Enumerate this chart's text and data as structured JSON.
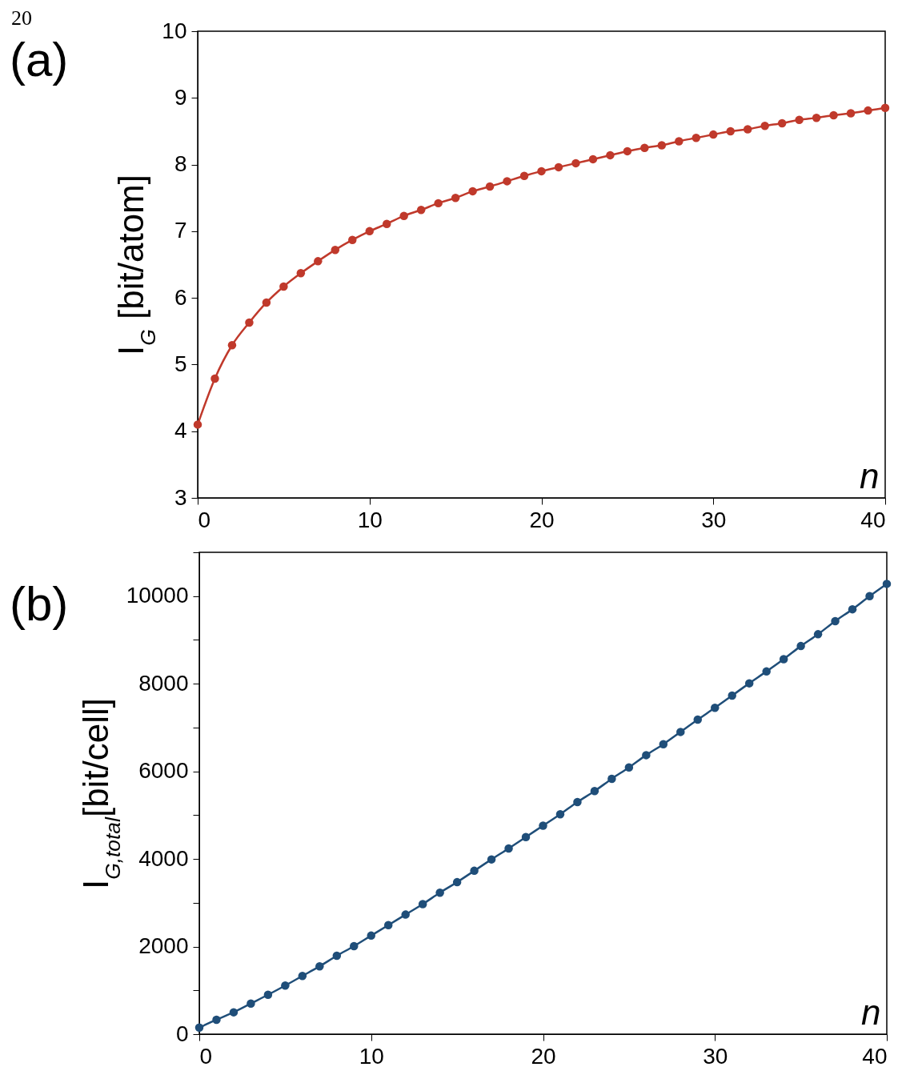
{
  "chart_data": [
    {
      "type": "line",
      "title": "(a)",
      "xlabel": "n",
      "ylabel": "I$_{G}$ [bit/atom]",
      "annotations": [
        "20"
      ],
      "marker": "circle",
      "line_style": "solid",
      "x": [
        0,
        1,
        2,
        3,
        4,
        5,
        6,
        7,
        8,
        9,
        10,
        11,
        12,
        13,
        14,
        15,
        16,
        17,
        18,
        19,
        20,
        21,
        22,
        23,
        24,
        25,
        26,
        27,
        28,
        29,
        30,
        31,
        32,
        33,
        34,
        35,
        36,
        37,
        38,
        39,
        40
      ],
      "series": [
        {
          "color": "#c0392b",
          "values": [
            4.1,
            4.79,
            5.29,
            5.63,
            5.93,
            6.17,
            6.37,
            6.55,
            6.72,
            6.87,
            7.0,
            7.11,
            7.23,
            7.32,
            7.42,
            7.5,
            7.6,
            7.67,
            7.75,
            7.83,
            7.9,
            7.96,
            8.02,
            8.08,
            8.14,
            8.2,
            8.25,
            8.29,
            8.35,
            8.4,
            8.45,
            8.5,
            8.53,
            8.58,
            8.62,
            8.67,
            8.7,
            8.74,
            8.77,
            8.81,
            8.85
          ]
        }
      ],
      "xlim": [
        0,
        40
      ],
      "xticks": [
        0,
        10,
        20,
        30,
        40
      ],
      "ylim": [
        3,
        10
      ],
      "yticks": [
        3,
        4,
        5,
        6,
        7,
        8,
        9,
        10
      ]
    },
    {
      "type": "line",
      "title": "(b)",
      "xlabel": "n",
      "ylabel": "I$_{G,total}$[bit/cell]",
      "marker": "circle",
      "line_style": "solid",
      "x": [
        0,
        1,
        2,
        3,
        4,
        5,
        6,
        7,
        8,
        9,
        10,
        11,
        12,
        13,
        14,
        15,
        16,
        17,
        18,
        19,
        20,
        21,
        22,
        23,
        24,
        25,
        26,
        27,
        28,
        29,
        30,
        31,
        32,
        33,
        34,
        35,
        36,
        37,
        38,
        39,
        40
      ],
      "series": [
        {
          "color": "#1f4e79",
          "values": [
            150,
            330,
            500,
            700,
            900,
            1110,
            1330,
            1550,
            1790,
            2010,
            2250,
            2490,
            2730,
            2970,
            3230,
            3470,
            3730,
            3990,
            4240,
            4500,
            4760,
            5020,
            5300,
            5550,
            5830,
            6090,
            6370,
            6620,
            6900,
            7180,
            7450,
            7730,
            8010,
            8280,
            8560,
            8860,
            9130,
            9430,
            9700,
            10000,
            10280
          ]
        }
      ],
      "xlim": [
        0,
        40
      ],
      "xticks": [
        0,
        10,
        20,
        30,
        40
      ],
      "ylim": [
        0,
        11000
      ],
      "yticks": [
        0,
        {
          "value": 1000,
          "label": null
        },
        2000,
        {
          "value": 3000,
          "label": null
        },
        4000,
        {
          "value": 5000,
          "label": null
        },
        6000,
        {
          "value": 7000,
          "label": null
        },
        8000,
        {
          "value": 9000,
          "label": null
        },
        10000,
        {
          "value": 11000,
          "label": null
        }
      ]
    }
  ]
}
